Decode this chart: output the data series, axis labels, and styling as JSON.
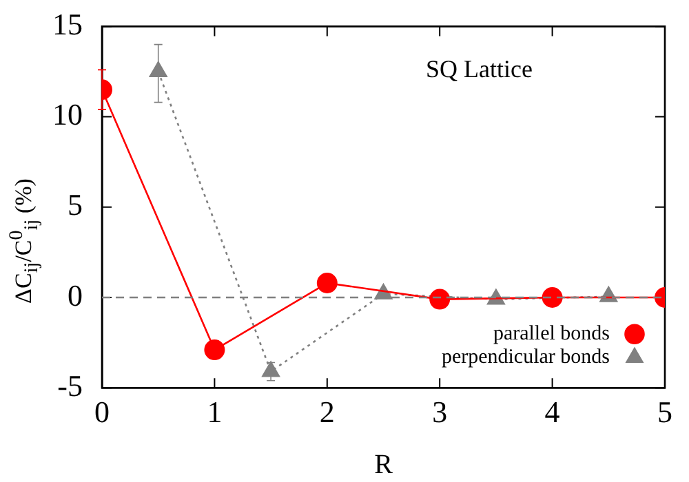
{
  "chart_data": {
    "type": "line",
    "title": "SQ Lattice",
    "xlabel": "R",
    "ylabel": "ΔC$_{ij}$/C$^{0}$$_{ij}$ (%)",
    "xlim": [
      0,
      5
    ],
    "xticks": [
      0,
      1,
      2,
      3,
      4,
      5
    ],
    "ylim": [
      -5,
      15
    ],
    "yticks": [
      -5,
      0,
      5,
      10,
      15
    ],
    "grid": false,
    "legend": "bottom right",
    "ref_lines": [
      {
        "axis": "y",
        "value": 0,
        "color": "#808080",
        "line_style": "dashed"
      }
    ],
    "series": [
      {
        "name": "parallel bonds",
        "color": "#ff0000",
        "marker": "circle",
        "line_style": "solid",
        "x": [
          0,
          1,
          2,
          3,
          4,
          5
        ],
        "values": [
          11.5,
          -2.9,
          0.8,
          -0.1,
          0,
          0
        ],
        "errors": [
          [
            10.4,
            12.6
          ],
          [
            -3.4,
            -2.4
          ],
          null,
          null,
          null,
          null
        ]
      },
      {
        "name": "perpendicular bonds",
        "color": "#808080",
        "marker": "triangle",
        "line_style": "dotted",
        "x": [
          0.5,
          1.5,
          2.5,
          3.5,
          4.5
        ],
        "values": [
          12.5,
          -4.1,
          0.2,
          -0.1,
          0.05
        ],
        "errors": [
          [
            10.8,
            14.0
          ],
          [
            -4.6,
            -3.6
          ],
          null,
          null,
          null
        ]
      }
    ]
  }
}
